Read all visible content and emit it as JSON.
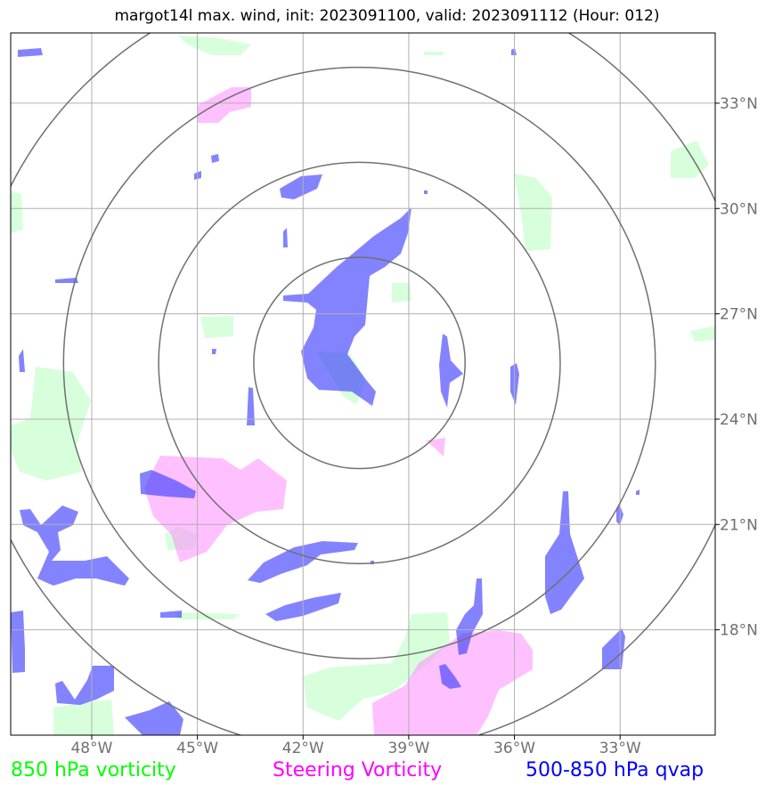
{
  "title": "margot14l max. wind, init: 2023091100, valid: 2023091112 (Hour: 012)",
  "map": {
    "lon_range": [
      -50.3,
      -30.3
    ],
    "lat_range": [
      15.0,
      35.0
    ],
    "lon_ticks": [
      -48,
      -45,
      -42,
      -39,
      -36,
      -33
    ],
    "lat_ticks": [
      18,
      21,
      24,
      27,
      30,
      33
    ],
    "lon_tick_labels": [
      "48°W",
      "45°W",
      "42°W",
      "39°W",
      "36°W",
      "33°W"
    ],
    "lat_tick_labels": [
      "18°N",
      "21°N",
      "24°N",
      "27°N",
      "30°N",
      "33°N"
    ],
    "storm_center": {
      "lon": -40.4,
      "lat": 25.6
    },
    "range_rings_deg": [
      3,
      5.7,
      8.4,
      11.1
    ],
    "colors": {
      "vorticity_850": "#a6ffb0",
      "steering_vorticity": "#ff8cff",
      "qvap": "#4040ff",
      "rings": "#707070",
      "grid": "#b0b0b0"
    }
  },
  "legend": {
    "vorticity_850": {
      "label": "850 hPa vorticity",
      "color": "#00ff00"
    },
    "steering": {
      "label": "Steering Vorticity",
      "color": "#ff00ff"
    },
    "qvap": {
      "label": "500-850 hPa qvap",
      "color": "#0000ff"
    }
  }
}
